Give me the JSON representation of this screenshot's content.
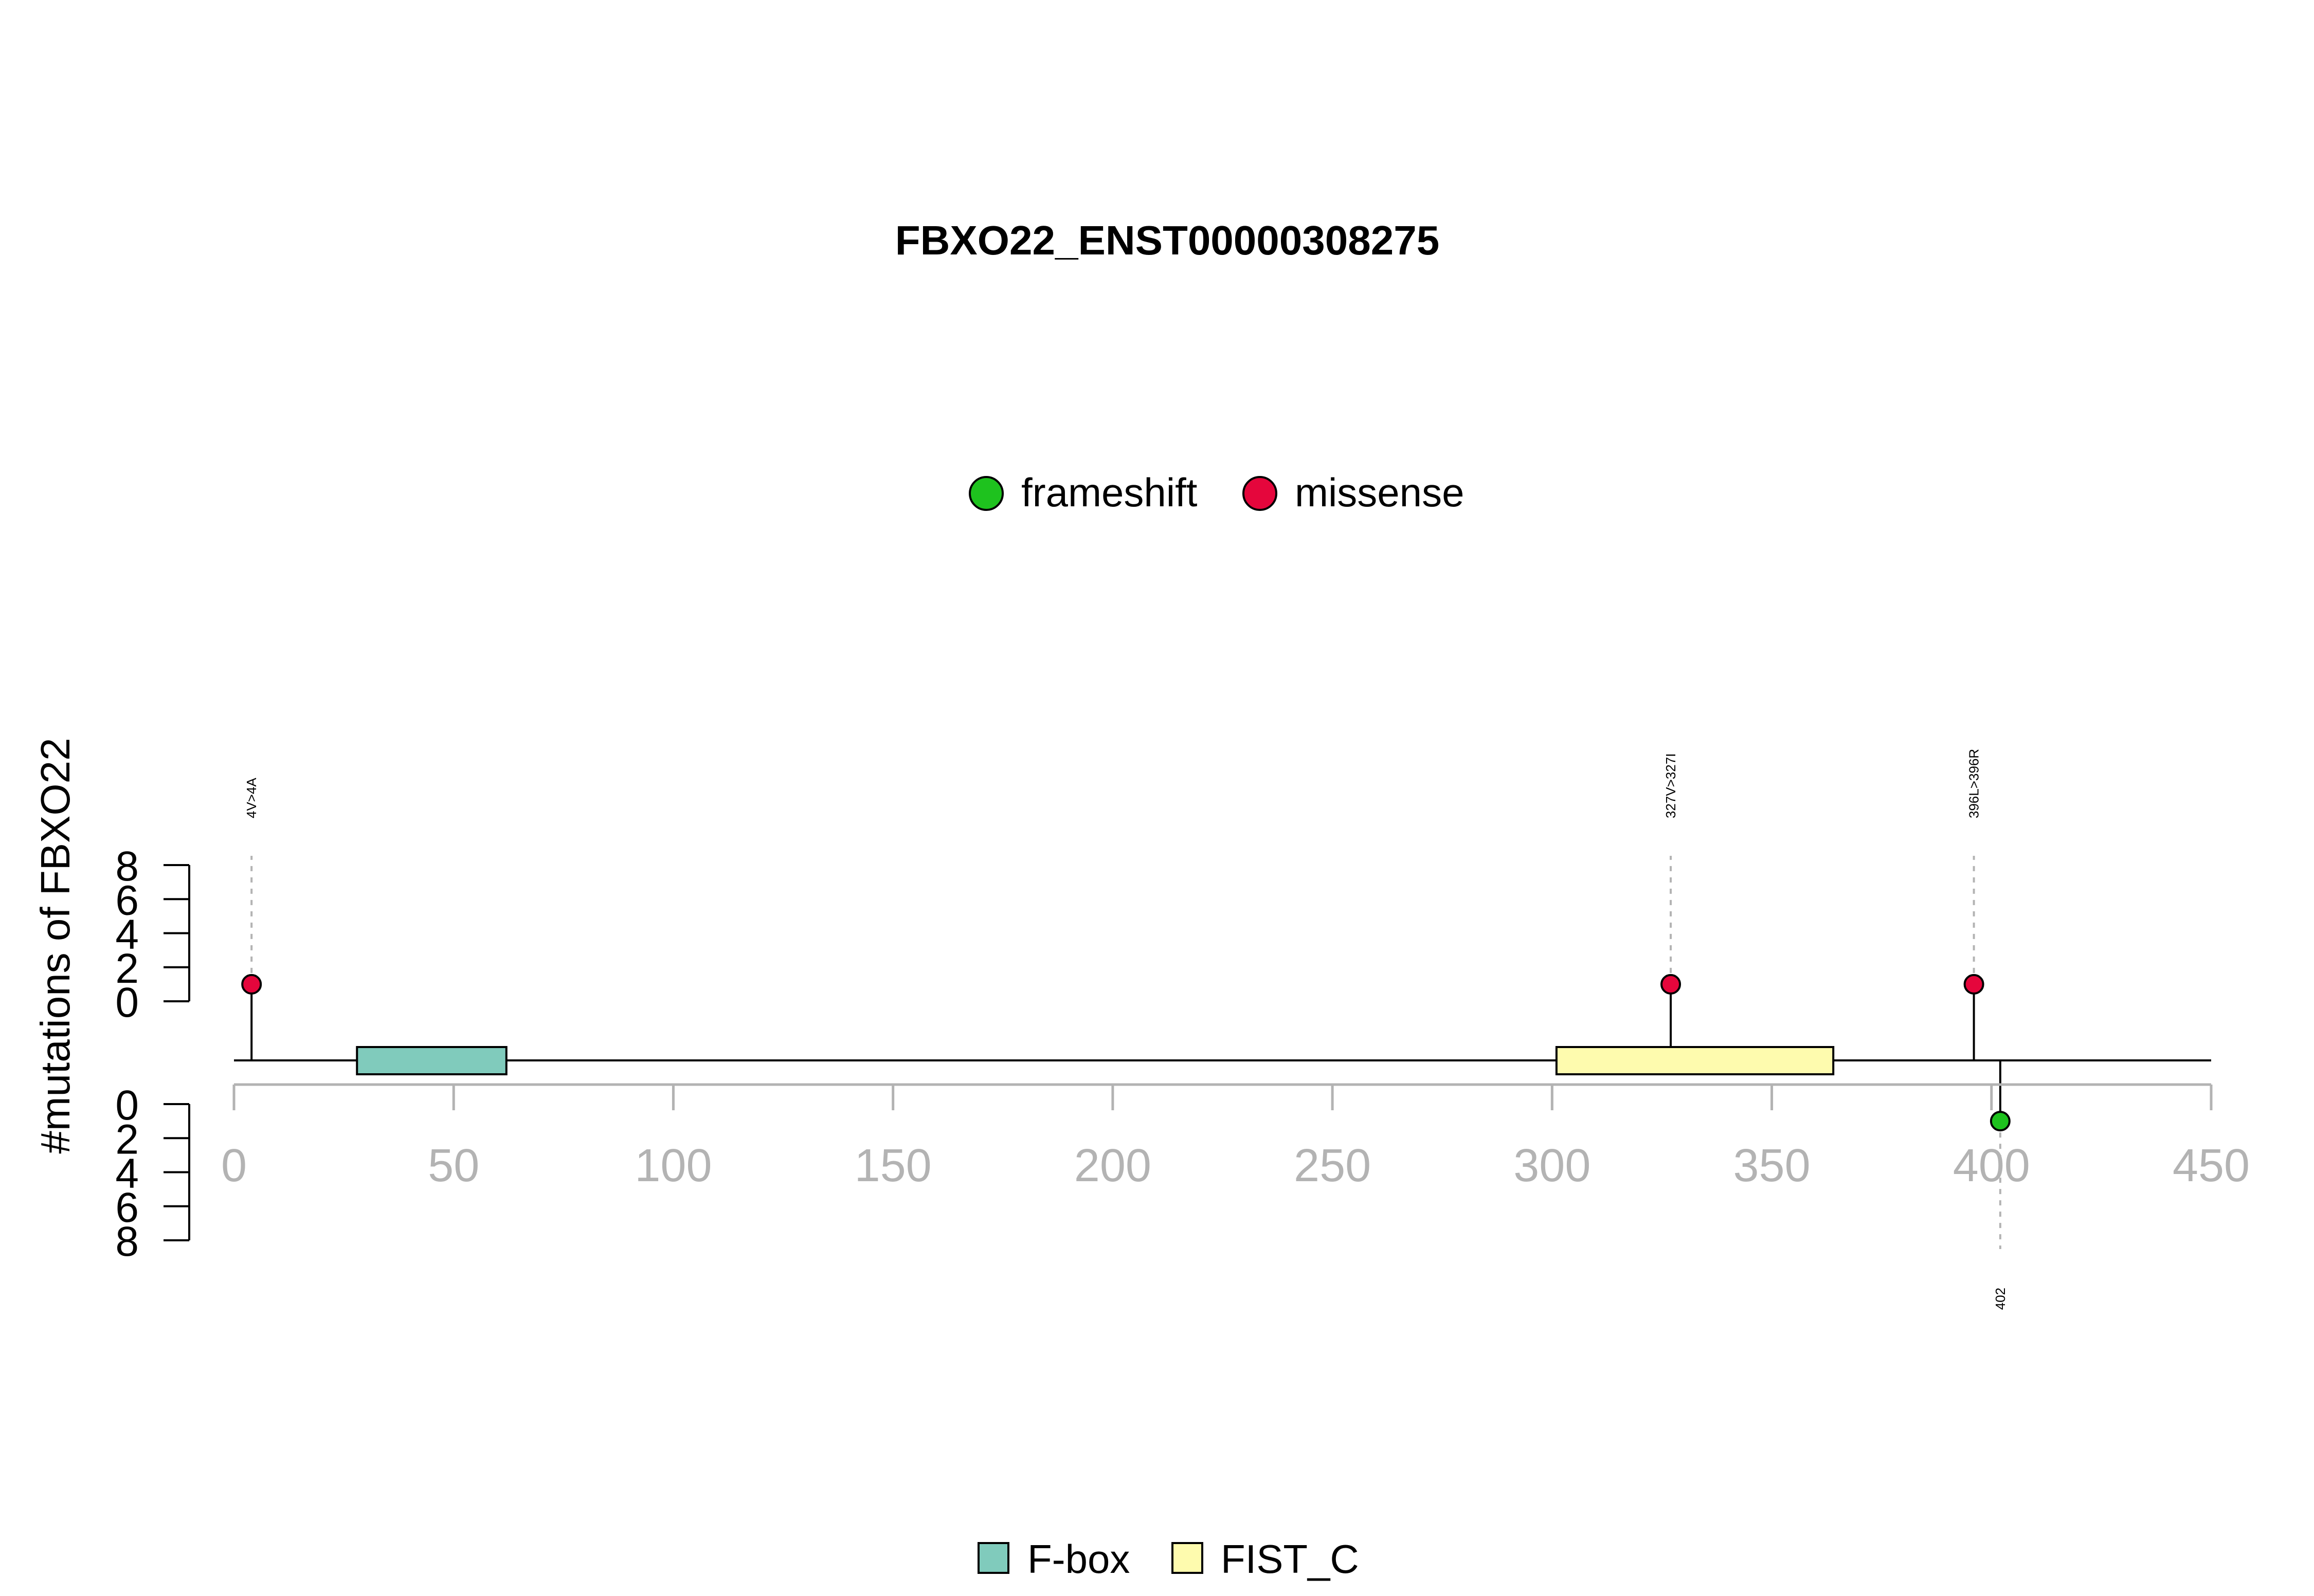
{
  "chart_data": {
    "type": "lollipop",
    "title": "FBXO22_ENST00000308275",
    "ylabel": "#mutations of FBXO22",
    "protein_length": 450,
    "x_axis": {
      "range": [
        0,
        450
      ],
      "ticks": [
        0,
        50,
        100,
        150,
        200,
        250,
        300,
        350,
        400,
        450
      ],
      "tick_color": "#b3b3b3"
    },
    "count_axis": {
      "range": [
        0,
        8
      ],
      "ticks": [
        0,
        2,
        4,
        6,
        8
      ]
    },
    "mutation_legend": [
      {
        "name": "frameshift",
        "color": "#1ec21e"
      },
      {
        "name": "missense",
        "color": "#e5063c"
      }
    ],
    "domain_legend": [
      {
        "name": "F-box",
        "color": "#80cbbc"
      },
      {
        "name": "FIST_C",
        "color": "#fefbae"
      }
    ],
    "domains": [
      {
        "name": "F-box",
        "start": 28,
        "end": 62,
        "color": "#80cbbc"
      },
      {
        "name": "FIST_C",
        "start": 301,
        "end": 364,
        "color": "#fefbae"
      }
    ],
    "mutations": [
      {
        "position": 4,
        "count": 1,
        "type": "missense",
        "side": "top",
        "label": "4V>4A"
      },
      {
        "position": 327,
        "count": 1,
        "type": "missense",
        "side": "top",
        "label": "327V>327I"
      },
      {
        "position": 396,
        "count": 1,
        "type": "missense",
        "side": "top",
        "label": "396L>396R"
      },
      {
        "position": 402,
        "count": 1,
        "type": "frameshift",
        "side": "bottom",
        "label": "402"
      }
    ]
  }
}
